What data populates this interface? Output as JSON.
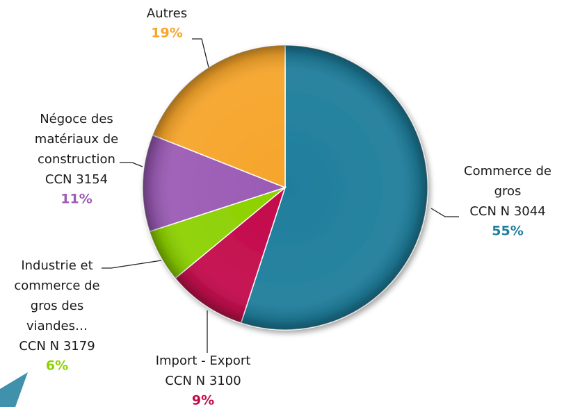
{
  "chart_data": {
    "type": "pie",
    "categories": [
      "Commerce de\ngros\nCCN N   3044",
      "Import - Export\nCCN N   3100",
      "Industrie et\ncommerce de\ngros des\nviandes…\nCCN N   3179",
      "Négoce des\nmatériaux de\nconstruction\nCCN 3154",
      "Autres"
    ],
    "values": [
      55,
      9,
      6,
      11,
      19
    ],
    "value_labels": [
      "55%",
      "9%",
      "6%",
      "11%",
      "19%"
    ],
    "colors": [
      "#1f7e9c",
      "#c30a4b",
      "#8cd100",
      "#9b5bb5",
      "#f6a52b"
    ]
  }
}
